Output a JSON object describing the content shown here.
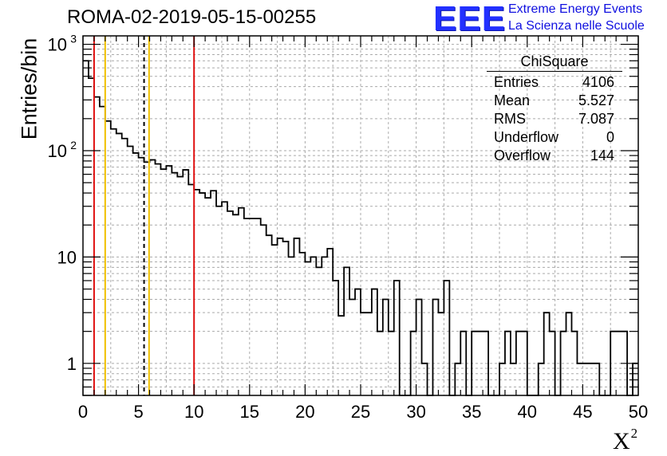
{
  "title": "ROMA-02-2019-05-15-00255",
  "logo": {
    "text": "EEE",
    "line1": "Extreme Energy Events",
    "line2": "La Scienza nelle Scuole",
    "color": "#2230ff"
  },
  "stats_box": {
    "title": "ChiSquare",
    "rows": [
      {
        "label": "Entries",
        "value": "4106"
      },
      {
        "label": "Mean",
        "value": "5.527"
      },
      {
        "label": "RMS",
        "value": "7.087"
      },
      {
        "label": "Underflow",
        "value": "0"
      },
      {
        "label": "Overflow",
        "value": "144"
      }
    ]
  },
  "chart_data": {
    "type": "histogram",
    "xlabel": "X",
    "xlabel_superscript": "2",
    "ylabel": "Entries/bin",
    "xlim": [
      0,
      50
    ],
    "ylim": [
      0.5,
      1200
    ],
    "ylog": true,
    "grid": true,
    "bin_width": 0.5,
    "x_ticks": [
      "0",
      "5",
      "10",
      "15",
      "20",
      "25",
      "30",
      "35",
      "40",
      "45",
      "50"
    ],
    "y_ticks": [
      {
        "value": 1,
        "label": "1"
      },
      {
        "value": 10,
        "label": "10"
      },
      {
        "value": 100,
        "label": "10",
        "exp": "2"
      },
      {
        "value": 1000,
        "label": "10",
        "exp": "3"
      }
    ],
    "values": [
      700,
      480,
      320,
      260,
      190,
      160,
      145,
      130,
      110,
      95,
      86,
      78,
      82,
      75,
      67,
      72,
      62,
      57,
      66,
      48,
      43,
      40,
      36,
      42,
      30,
      33,
      27,
      25,
      29,
      23,
      23,
      23,
      20,
      16,
      13,
      15,
      14,
      10,
      15,
      11,
      9,
      10,
      8,
      10,
      12,
      6,
      2.8,
      8,
      4,
      5,
      3,
      3,
      5,
      2,
      4,
      2,
      6,
      0,
      0,
      2,
      4,
      1,
      0,
      4,
      3,
      6,
      0,
      1,
      2,
      0,
      2,
      2,
      2,
      0,
      0,
      1,
      2,
      1,
      2,
      2,
      0,
      0,
      1,
      3,
      2,
      0,
      2,
      3,
      2,
      1,
      1,
      1,
      1,
      0,
      0,
      2,
      2,
      2,
      0,
      1
    ],
    "vertical_lines": [
      {
        "x": 1.0,
        "color": "#e01010",
        "style": "solid"
      },
      {
        "x": 2.0,
        "color": "#f0c000",
        "style": "solid"
      },
      {
        "x": 5.5,
        "color": "#000000",
        "style": "dashed"
      },
      {
        "x": 5.95,
        "color": "#f0c000",
        "style": "solid"
      },
      {
        "x": 10.0,
        "color": "#e01010",
        "style": "solid"
      }
    ]
  }
}
